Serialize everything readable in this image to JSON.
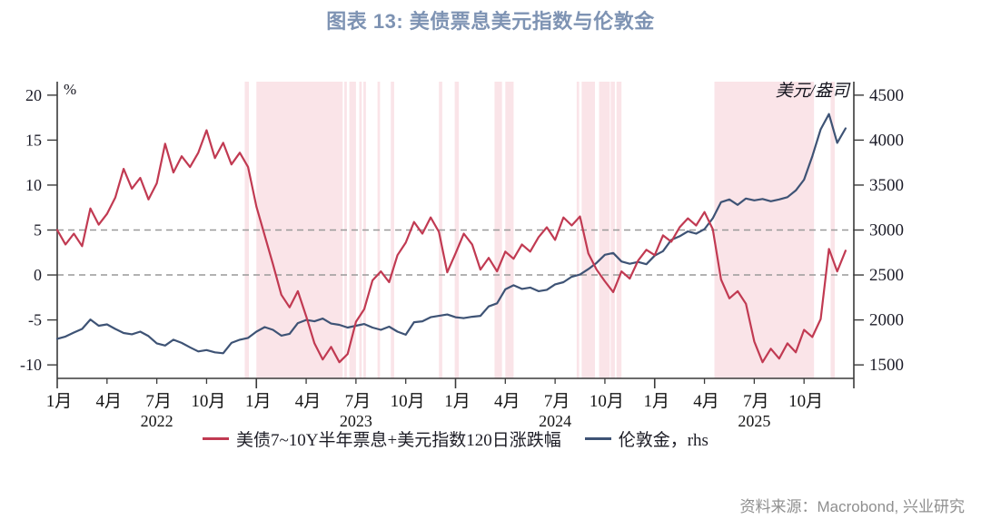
{
  "title": "图表 13: 美债票息美元指数与伦敦金",
  "source": "资料来源：Macrobond, 兴业研究",
  "legend": [
    {
      "label": "美债7~10Y半年票息+美元指数120日涨跌幅",
      "color": "#c13a52"
    },
    {
      "label": "伦敦金，rhs",
      "color": "#3e5375"
    }
  ],
  "chart_data": {
    "type": "line",
    "title": "图表 13: 美债票息美元指数与伦敦金",
    "x_axis": {
      "start": "2022-01",
      "months_total": 48,
      "tick_every_months": 3,
      "quarter_labels": [
        "1月",
        "4月",
        "7月",
        "10月",
        "1月",
        "4月",
        "7月",
        "10月",
        "1月",
        "4月",
        "7月",
        "10月",
        "1月",
        "4月",
        "7月",
        "10月"
      ],
      "years": [
        {
          "label": "2022",
          "month": 6
        },
        {
          "label": "2023",
          "month": 18
        },
        {
          "label": "2024",
          "month": 30
        },
        {
          "label": "2025",
          "month": 42
        }
      ]
    },
    "left_axis": {
      "unit": "%",
      "min": -11.5,
      "max": 21.5,
      "ticks": [
        20,
        15,
        10,
        5,
        0,
        -5,
        -10
      ],
      "dashed_at": [
        5,
        0
      ]
    },
    "right_axis": {
      "unit": "美元/盎司",
      "min": 1350,
      "max": 4650,
      "ticks": [
        4500,
        4000,
        3500,
        3000,
        2500,
        2000,
        1500
      ]
    },
    "series": [
      {
        "name": "美债7~10Y半年票息+美元指数120日涨跌幅",
        "axis": "left",
        "color": "#c13a52",
        "step_months": 0.5,
        "values": [
          5.0,
          3.4,
          4.6,
          3.2,
          7.4,
          5.6,
          6.8,
          8.6,
          11.8,
          9.6,
          10.8,
          8.4,
          10.2,
          14.6,
          11.4,
          13.2,
          12.0,
          13.6,
          16.1,
          13.0,
          14.7,
          12.3,
          13.6,
          12.0,
          7.6,
          4.4,
          1.2,
          -2.2,
          -3.6,
          -1.8,
          -4.6,
          -7.6,
          -9.4,
          -8.0,
          -9.7,
          -8.8,
          -5.2,
          -3.8,
          -0.6,
          0.4,
          -0.8,
          2.2,
          3.6,
          5.9,
          4.6,
          6.4,
          4.8,
          0.3,
          2.4,
          4.6,
          3.4,
          0.6,
          1.9,
          0.4,
          2.6,
          1.8,
          3.4,
          2.6,
          4.2,
          5.3,
          3.9,
          6.4,
          5.5,
          6.5,
          2.4,
          0.6,
          -0.7,
          -1.9,
          0.4,
          -0.4,
          1.6,
          2.8,
          2.2,
          4.4,
          3.7,
          5.3,
          6.3,
          5.5,
          7.0,
          5.1,
          -0.5,
          -2.6,
          -1.8,
          -3.2,
          -7.4,
          -9.7,
          -8.2,
          -9.3,
          -7.6,
          -8.6,
          -6.1,
          -6.9,
          -4.9,
          2.9,
          0.4,
          2.7
        ]
      },
      {
        "name": "伦敦金，rhs",
        "axis": "right",
        "color": "#3e5375",
        "step_months": 0.5,
        "values": [
          1790,
          1815,
          1860,
          1900,
          2005,
          1935,
          1950,
          1900,
          1855,
          1840,
          1870,
          1820,
          1740,
          1715,
          1780,
          1745,
          1695,
          1650,
          1665,
          1640,
          1630,
          1745,
          1780,
          1800,
          1870,
          1920,
          1890,
          1825,
          1845,
          1965,
          2000,
          1985,
          2015,
          1960,
          1945,
          1915,
          1935,
          1955,
          1915,
          1890,
          1925,
          1870,
          1835,
          1975,
          1985,
          2030,
          2045,
          2060,
          2030,
          2020,
          2035,
          2045,
          2150,
          2185,
          2340,
          2385,
          2345,
          2360,
          2320,
          2335,
          2395,
          2420,
          2480,
          2505,
          2565,
          2635,
          2725,
          2745,
          2650,
          2625,
          2645,
          2620,
          2715,
          2765,
          2890,
          2930,
          2985,
          2960,
          3010,
          3130,
          3310,
          3340,
          3280,
          3350,
          3330,
          3345,
          3320,
          3340,
          3365,
          3440,
          3560,
          3820,
          4120,
          4290,
          3970,
          4130
        ]
      }
    ],
    "highlight_bands": [
      [
        11.3,
        11.55
      ],
      [
        12.0,
        17.2
      ],
      [
        17.3,
        17.45
      ],
      [
        17.6,
        18.0
      ],
      [
        18.2,
        18.35
      ],
      [
        18.45,
        18.6
      ],
      [
        19.3,
        19.45
      ],
      [
        20.1,
        20.3
      ],
      [
        23.0,
        23.2
      ],
      [
        23.95,
        24.2
      ],
      [
        26.35,
        26.8
      ],
      [
        27.0,
        27.5
      ],
      [
        31.3,
        31.45
      ],
      [
        31.6,
        32.4
      ],
      [
        32.65,
        33.3
      ],
      [
        33.35,
        33.6
      ],
      [
        33.7,
        34.0
      ],
      [
        39.6,
        45.6
      ],
      [
        46.6,
        46.85
      ]
    ],
    "colors": {
      "band": "#f7d3da",
      "grid": "#999999",
      "axis": "#3a3a3a",
      "tick_text": "#1c1c28",
      "title": "#7e93b3"
    },
    "legend_position": "bottom",
    "grid": "dashed horizontal at left-axis 5 and 0 only"
  }
}
